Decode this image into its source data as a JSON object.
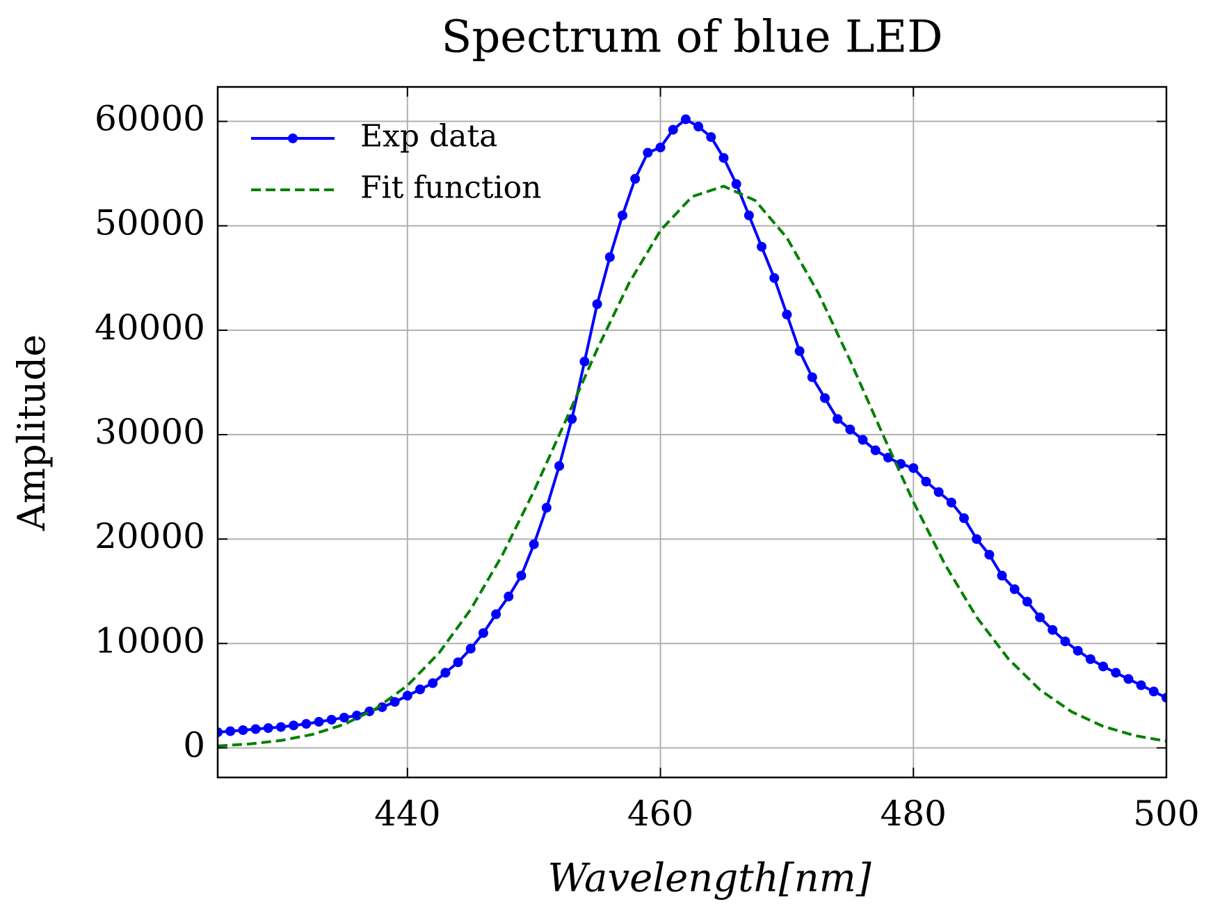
{
  "chart_data": {
    "type": "line",
    "title": "Spectrum of blue LED",
    "xlabel": "Wavelength[nm]",
    "ylabel": "Amplitude",
    "xlim": [
      425,
      500
    ],
    "ylim": [
      -2830,
      63300
    ],
    "xticks": [
      440,
      460,
      480,
      500
    ],
    "yticks": [
      0,
      10000,
      20000,
      30000,
      40000,
      50000,
      60000
    ],
    "grid": true,
    "legend": "upper left",
    "series": [
      {
        "name": "Exp data",
        "color": "#0000ff",
        "style": "solid",
        "marker": true,
        "x": [
          425,
          426,
          427,
          428,
          429,
          430,
          431,
          432,
          433,
          434,
          435,
          436,
          437,
          438,
          439,
          440,
          441,
          442,
          443,
          444,
          445,
          446,
          447,
          448,
          449,
          450,
          451,
          452,
          453,
          454,
          455,
          456,
          457,
          458,
          459,
          460,
          461,
          462,
          463,
          464,
          465,
          466,
          467,
          468,
          469,
          470,
          471,
          472,
          473,
          474,
          475,
          476,
          477,
          478,
          479,
          480,
          481,
          482,
          483,
          484,
          485,
          486,
          487,
          488,
          489,
          490,
          491,
          492,
          493,
          494,
          495,
          496,
          497,
          498,
          499,
          500
        ],
        "values": [
          1500,
          1600,
          1700,
          1800,
          1900,
          2000,
          2150,
          2300,
          2500,
          2700,
          2900,
          3100,
          3500,
          3900,
          4400,
          5000,
          5600,
          6200,
          7200,
          8200,
          9500,
          11000,
          12800,
          14500,
          16500,
          19500,
          23000,
          27000,
          31500,
          37000,
          42500,
          47000,
          51000,
          54500,
          57000,
          57500,
          59200,
          60200,
          59500,
          58500,
          56500,
          54000,
          51000,
          48000,
          45000,
          41500,
          38000,
          35500,
          33500,
          31500,
          30500,
          29500,
          28500,
          27800,
          27200,
          26800,
          25500,
          24500,
          23500,
          22000,
          20000,
          18500,
          16500,
          15200,
          14000,
          12500,
          11300,
          10200,
          9300,
          8500,
          7800,
          7200,
          6600,
          6000,
          5400,
          4800
        ]
      },
      {
        "name": "Fit function",
        "color": "#008000",
        "style": "dashed",
        "marker": false,
        "x": [
          425,
          427.5,
          430,
          432.5,
          435,
          437.5,
          440,
          442.5,
          445,
          447.5,
          450,
          452.5,
          455,
          457.5,
          460,
          462.5,
          465,
          467.5,
          470,
          472.5,
          475,
          477.5,
          480,
          482.5,
          485,
          487.5,
          490,
          492.5,
          495,
          497.5,
          500
        ],
        "values": [
          187,
          373,
          710,
          1292,
          2252,
          3749,
          5973,
          9097,
          13256,
          18459,
          24592,
          31322,
          38176,
          44466,
          49550,
          52794,
          53792,
          52417,
          48845,
          43524,
          37095,
          30230,
          23559,
          17560,
          12514,
          8533,
          5563,
          3465,
          2066,
          1178,
          642
        ]
      }
    ]
  }
}
